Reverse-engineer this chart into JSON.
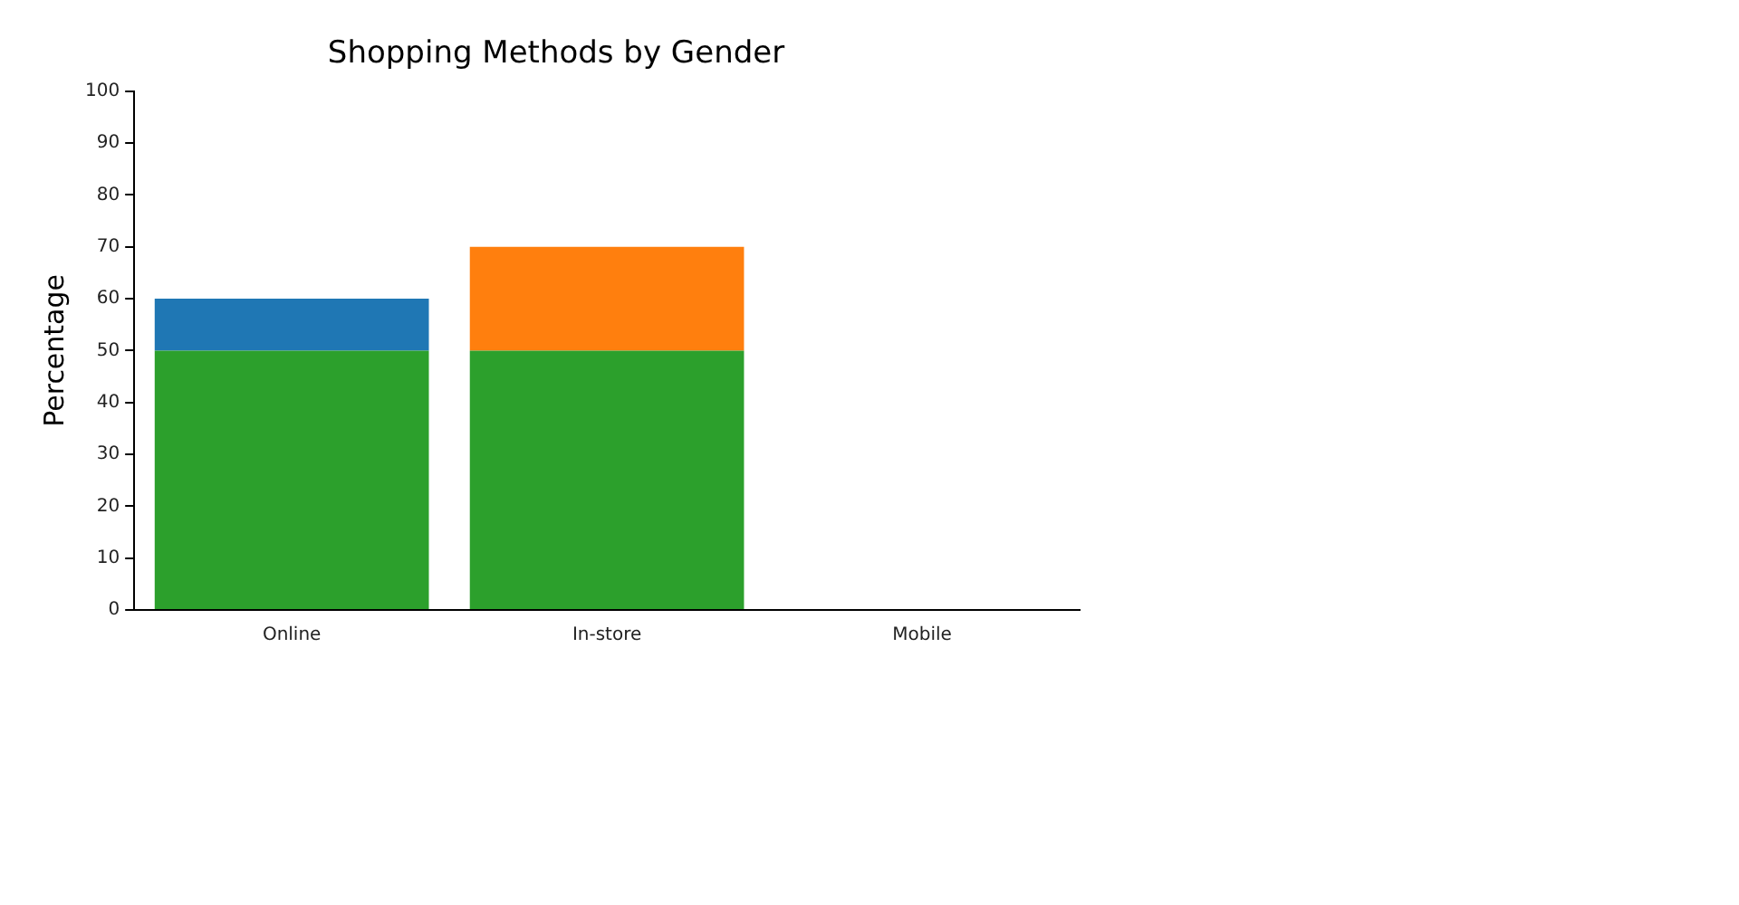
{
  "chart_data": {
    "type": "bar",
    "title": "Shopping Methods by Gender",
    "ylabel": "Percentage",
    "categories": [
      "Online",
      "In-store",
      "Mobile"
    ],
    "stacked": true,
    "series": [
      {
        "color": "#2ca02c",
        "values": [
          50,
          50,
          null
        ]
      },
      {
        "color": "#1f77b4",
        "values": [
          10,
          null,
          null
        ]
      },
      {
        "color": "#ff7f0e",
        "values": [
          null,
          20,
          null
        ]
      }
    ],
    "ylim": [
      0,
      100
    ],
    "yticks": [
      0,
      10,
      20,
      30,
      40,
      50,
      60,
      70,
      80,
      90,
      100
    ],
    "grid": false,
    "legend": false
  }
}
